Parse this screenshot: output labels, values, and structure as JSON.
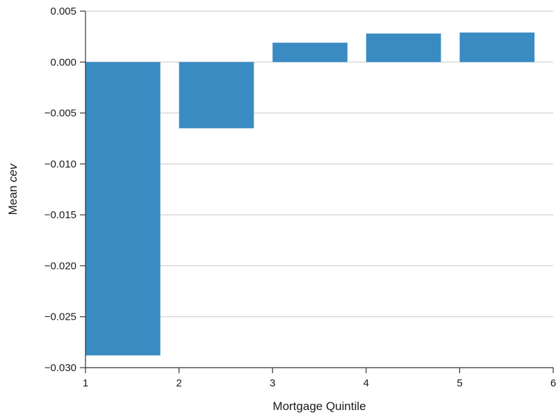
{
  "chart_data": {
    "type": "bar",
    "x": [
      1,
      2,
      3,
      4,
      5
    ],
    "values": [
      -0.0288,
      -0.0065,
      0.0019,
      0.0028,
      0.0029
    ],
    "bar_width": 0.8,
    "xlabel": "Mortgage Quintile",
    "ylabel_prefix": "Mean ",
    "ylabel_italic": "cev",
    "xlim": [
      1,
      6
    ],
    "ylim": [
      -0.03,
      0.005
    ],
    "xticks": [
      "1",
      "2",
      "3",
      "4",
      "5",
      "6"
    ],
    "yticks": [
      "0.005",
      "0.000",
      "−0.005",
      "−0.010",
      "−0.015",
      "−0.020",
      "−0.025",
      "−0.030"
    ],
    "ytick_values": [
      0.005,
      0.0,
      -0.005,
      -0.01,
      -0.015,
      -0.02,
      -0.025,
      -0.03
    ],
    "grid": "horizontal",
    "colors": {
      "bar": "#3a8bc2"
    }
  }
}
